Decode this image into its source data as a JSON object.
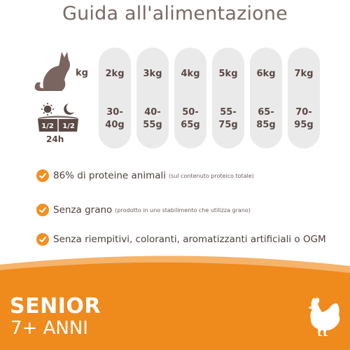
{
  "title": "Guida all'alimentazione",
  "kg_label": "kg",
  "portion_fractions": [
    "1/2",
    "1/2"
  ],
  "duration_label": "24h",
  "icons": {
    "cat": "cat-silhouette-icon",
    "day": "sun-icon",
    "night": "moon-icon",
    "bowl": "food-bowl-icon",
    "check": "check-icon",
    "chicken": "chicken-icon"
  },
  "columns": [
    {
      "weight": "2kg",
      "grams_line1": "30-",
      "grams_line2": "40g"
    },
    {
      "weight": "3kg",
      "grams_line1": "40-",
      "grams_line2": "55g"
    },
    {
      "weight": "4kg",
      "grams_line1": "50-",
      "grams_line2": "65g"
    },
    {
      "weight": "5kg",
      "grams_line1": "55-",
      "grams_line2": "75g"
    },
    {
      "weight": "6kg",
      "grams_line1": "65-",
      "grams_line2": "85g"
    },
    {
      "weight": "7kg",
      "grams_line1": "70-",
      "grams_line2": "95g"
    }
  ],
  "features": [
    {
      "text": "86% di proteine animali",
      "note": "(sul contenuto proteico totale)"
    },
    {
      "text": "Senza grano",
      "note": "(prodotto in uno stabilimento che utilizza grano)"
    },
    {
      "text": "Senza riempitivi, coloranti, aromatizzanti artificiali o OGM",
      "note": ""
    }
  ],
  "badge": {
    "line1": "SENIOR",
    "line2": "7+ ANNI"
  },
  "colors": {
    "accent": "#f29020",
    "pill": "#ebeaeb",
    "text": "#5a4a45",
    "cat": "#7b6560"
  }
}
